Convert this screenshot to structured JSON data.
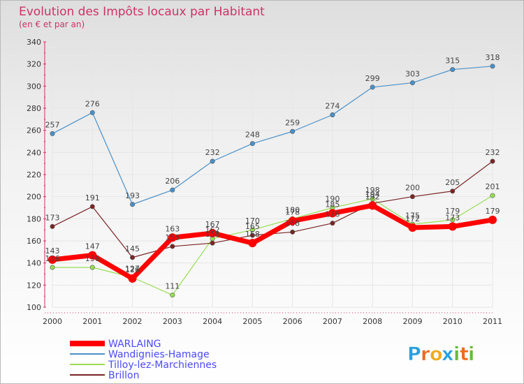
{
  "chart_data": {
    "type": "line",
    "title": "Evolution des Impôts locaux par Habitant",
    "subtitle": "(en € et par an)",
    "x": [
      2000,
      2001,
      2002,
      2003,
      2004,
      2005,
      2006,
      2007,
      2008,
      2009,
      2010,
      2011
    ],
    "ylim": [
      100,
      340
    ],
    "yticks": [
      100,
      120,
      140,
      160,
      180,
      200,
      220,
      240,
      260,
      280,
      300,
      320,
      340
    ],
    "grid": true,
    "legend_position": "bottom-left",
    "series": [
      {
        "name": "WARLAING",
        "color": "#ff0000",
        "values": [
          143,
          147,
          126,
          163,
          167,
          158,
          178,
          185,
          192,
          172,
          173,
          179
        ]
      },
      {
        "name": "Wandignies-Hamage",
        "color": "#4a90c8",
        "values": [
          257,
          276,
          193,
          206,
          232,
          248,
          259,
          274,
          299,
          303,
          315,
          318
        ]
      },
      {
        "name": "Tilloy-lez-Marchiennes",
        "color": "#99dd55",
        "values": [
          136,
          136,
          127,
          111,
          162,
          170,
          180,
          190,
          198,
          175,
          179,
          201
        ]
      },
      {
        "name": "Brillon",
        "color": "#7a2424",
        "values": [
          173,
          191,
          145,
          155,
          158,
          165,
          168,
          176,
          194,
          200,
          205,
          232
        ]
      }
    ]
  },
  "brand": {
    "letters": [
      "P",
      "r",
      "o",
      "x",
      "i",
      "t",
      "i"
    ],
    "colors": [
      "#2aa0dd",
      "#ee6a1c",
      "#eeaa1c",
      "#2aa0dd",
      "#66bb33",
      "#ee6a1c",
      "#66bb33"
    ]
  }
}
